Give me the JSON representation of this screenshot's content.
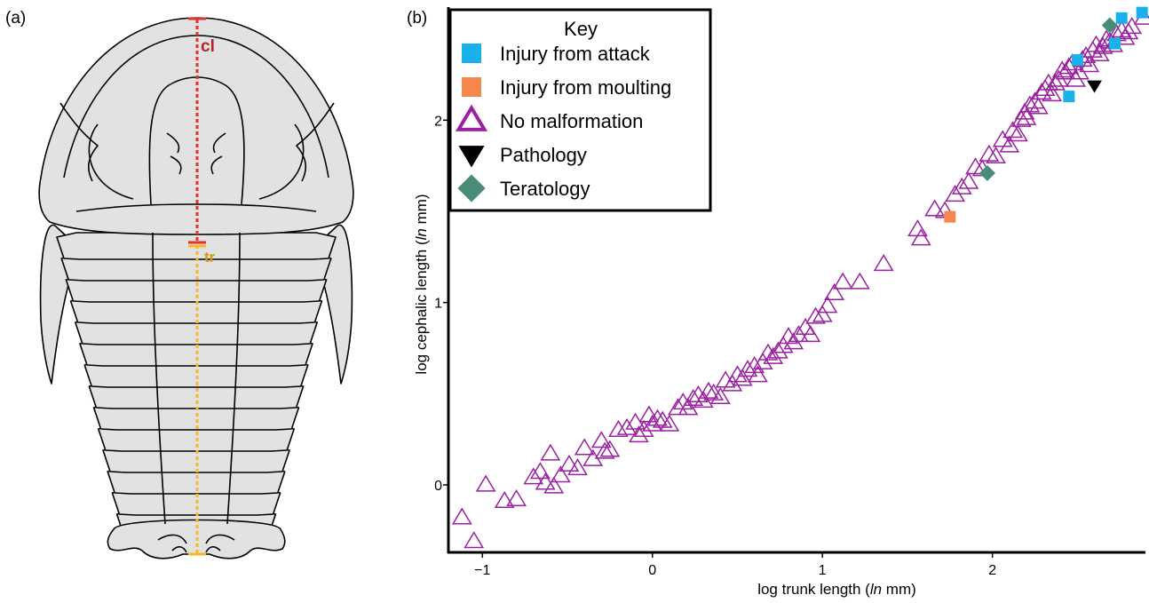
{
  "panels": {
    "a": "(a)",
    "b": "(b)"
  },
  "trilobite": {
    "cl_label": "cl",
    "tr_label": "tr",
    "colors": {
      "body": "#e2e2e2",
      "outline": "#000000",
      "cl": "#e0332e",
      "tr": "#f6b82a",
      "cl_text": "#b5242a",
      "tr_text": "#d49a12"
    }
  },
  "chart_data": {
    "type": "scatter",
    "xlabel": "log trunk length (ln mm)",
    "ylabel": "log cephalic length (ln mm)",
    "xlim": [
      -1.2,
      2.9
    ],
    "ylim": [
      -0.37,
      2.62
    ],
    "xticks": [
      -1,
      0,
      1,
      2
    ],
    "yticks": [
      0,
      1,
      2
    ],
    "grid": false,
    "legend": {
      "title": "Key",
      "placement": "top-left"
    },
    "series": [
      {
        "name": "Injury from attack",
        "marker": "square",
        "color": "#1ab0ec",
        "points": [
          [
            2.45,
            2.13
          ],
          [
            2.5,
            2.33
          ],
          [
            2.72,
            2.42
          ],
          [
            2.76,
            2.56
          ],
          [
            2.88,
            2.59
          ]
        ]
      },
      {
        "name": "Injury from moulting",
        "marker": "square",
        "color": "#f4874b",
        "points": [
          [
            1.75,
            1.47
          ]
        ]
      },
      {
        "name": "No malformation",
        "marker": "triangle-open",
        "color": "#9a21a0",
        "points": [
          [
            -1.12,
            -0.18
          ],
          [
            -1.05,
            -0.31
          ],
          [
            -0.98,
            0.0
          ],
          [
            -0.87,
            -0.09
          ],
          [
            -0.8,
            -0.08
          ],
          [
            -0.7,
            0.04
          ],
          [
            -0.66,
            0.07
          ],
          [
            -0.63,
            0.01
          ],
          [
            -0.6,
            0.17
          ],
          [
            -0.58,
            -0.01
          ],
          [
            -0.54,
            0.05
          ],
          [
            -0.49,
            0.11
          ],
          [
            -0.44,
            0.09
          ],
          [
            -0.4,
            0.2
          ],
          [
            -0.35,
            0.14
          ],
          [
            -0.3,
            0.24
          ],
          [
            -0.28,
            0.18
          ],
          [
            -0.25,
            0.19
          ],
          [
            -0.2,
            0.3
          ],
          [
            -0.15,
            0.31
          ],
          [
            -0.1,
            0.34
          ],
          [
            -0.08,
            0.27
          ],
          [
            -0.05,
            0.3
          ],
          [
            -0.02,
            0.38
          ],
          [
            0.0,
            0.33
          ],
          [
            0.03,
            0.36
          ],
          [
            0.06,
            0.35
          ],
          [
            0.1,
            0.33
          ],
          [
            0.15,
            0.42
          ],
          [
            0.18,
            0.45
          ],
          [
            0.21,
            0.42
          ],
          [
            0.24,
            0.47
          ],
          [
            0.27,
            0.49
          ],
          [
            0.3,
            0.46
          ],
          [
            0.33,
            0.51
          ],
          [
            0.36,
            0.5
          ],
          [
            0.4,
            0.48
          ],
          [
            0.43,
            0.57
          ],
          [
            0.47,
            0.55
          ],
          [
            0.5,
            0.6
          ],
          [
            0.53,
            0.58
          ],
          [
            0.56,
            0.63
          ],
          [
            0.6,
            0.65
          ],
          [
            0.62,
            0.6
          ],
          [
            0.65,
            0.67
          ],
          [
            0.68,
            0.72
          ],
          [
            0.71,
            0.7
          ],
          [
            0.74,
            0.73
          ],
          [
            0.77,
            0.76
          ],
          [
            0.8,
            0.81
          ],
          [
            0.83,
            0.78
          ],
          [
            0.86,
            0.82
          ],
          [
            0.9,
            0.86
          ],
          [
            0.93,
            0.82
          ],
          [
            0.96,
            0.92
          ],
          [
            1.0,
            0.93
          ],
          [
            1.03,
            0.98
          ],
          [
            1.07,
            1.05
          ],
          [
            1.12,
            1.11
          ],
          [
            1.22,
            1.11
          ],
          [
            1.36,
            1.21
          ],
          [
            1.56,
            1.4
          ],
          [
            1.58,
            1.35
          ],
          [
            1.66,
            1.51
          ],
          [
            1.72,
            1.5
          ],
          [
            1.78,
            1.59
          ],
          [
            1.82,
            1.63
          ],
          [
            1.86,
            1.66
          ],
          [
            1.9,
            1.74
          ],
          [
            1.94,
            1.73
          ],
          [
            1.98,
            1.81
          ],
          [
            2.02,
            1.8
          ],
          [
            2.06,
            1.89
          ],
          [
            2.1,
            1.86
          ],
          [
            2.12,
            1.94
          ],
          [
            2.15,
            1.92
          ],
          [
            2.17,
            2.0
          ],
          [
            2.19,
            2.04
          ],
          [
            2.2,
            2.01
          ],
          [
            2.22,
            2.08
          ],
          [
            2.25,
            2.1
          ],
          [
            2.27,
            2.07
          ],
          [
            2.29,
            2.15
          ],
          [
            2.31,
            2.17
          ],
          [
            2.33,
            2.2
          ],
          [
            2.35,
            2.14
          ],
          [
            2.37,
            2.2
          ],
          [
            2.39,
            2.22
          ],
          [
            2.41,
            2.27
          ],
          [
            2.43,
            2.26
          ],
          [
            2.45,
            2.29
          ],
          [
            2.47,
            2.31
          ],
          [
            2.49,
            2.22
          ],
          [
            2.51,
            2.26
          ],
          [
            2.53,
            2.33
          ],
          [
            2.55,
            2.35
          ],
          [
            2.57,
            2.3
          ],
          [
            2.59,
            2.38
          ],
          [
            2.61,
            2.41
          ],
          [
            2.63,
            2.36
          ],
          [
            2.65,
            2.4
          ],
          [
            2.67,
            2.44
          ],
          [
            2.69,
            2.43
          ],
          [
            2.71,
            2.41
          ],
          [
            2.73,
            2.47
          ],
          [
            2.76,
            2.49
          ],
          [
            2.78,
            2.45
          ],
          [
            2.8,
            2.48
          ],
          [
            2.82,
            2.51
          ],
          [
            2.89,
            2.56
          ]
        ]
      },
      {
        "name": "Pathology",
        "marker": "triangle-down",
        "color": "#000000",
        "points": [
          [
            2.6,
            2.19
          ]
        ]
      },
      {
        "name": "Teratology",
        "marker": "diamond",
        "color": "#4a8c7a",
        "points": [
          [
            1.97,
            1.71
          ],
          [
            2.69,
            2.52
          ]
        ]
      }
    ]
  }
}
